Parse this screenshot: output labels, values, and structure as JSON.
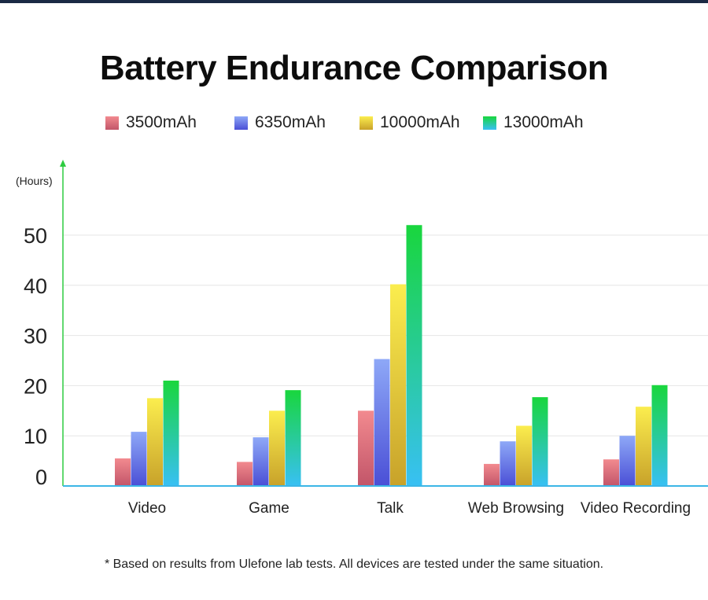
{
  "chart_data": {
    "type": "bar",
    "title": "Battery Endurance Comparison",
    "ylabel": "(Hours)",
    "xlabel": "",
    "categories": [
      "Video",
      "Game",
      "Talk",
      "Web Browsing",
      "Video Recording"
    ],
    "series": [
      {
        "name": "3500mAh",
        "values": [
          5.5,
          4.8,
          15,
          4.4,
          5.3
        ]
      },
      {
        "name": "6350mAh",
        "values": [
          10.8,
          9.7,
          25.3,
          8.9,
          10
        ]
      },
      {
        "name": "10000mAh",
        "values": [
          17.5,
          15,
          40.2,
          12,
          15.8
        ]
      },
      {
        "name": "13000mAh",
        "values": [
          21,
          19.1,
          52,
          17.7,
          20.1
        ]
      }
    ],
    "yticks": [
      0,
      10,
      20,
      30,
      40,
      50
    ],
    "ylim": [
      0,
      57
    ],
    "grid": true,
    "legend": "top",
    "colors": {
      "3500mAh": [
        "#f28a8f",
        "#c25569"
      ],
      "6350mAh": [
        "#8ea8f7",
        "#4a4fd6"
      ],
      "10000mAh": [
        "#fbed4e",
        "#c8a22a"
      ],
      "13000mAh": [
        "#19d63d",
        "#38c0f4"
      ]
    }
  },
  "footnote": "* Based on results from Ulefone lab tests. All devices are tested under the same situation."
}
